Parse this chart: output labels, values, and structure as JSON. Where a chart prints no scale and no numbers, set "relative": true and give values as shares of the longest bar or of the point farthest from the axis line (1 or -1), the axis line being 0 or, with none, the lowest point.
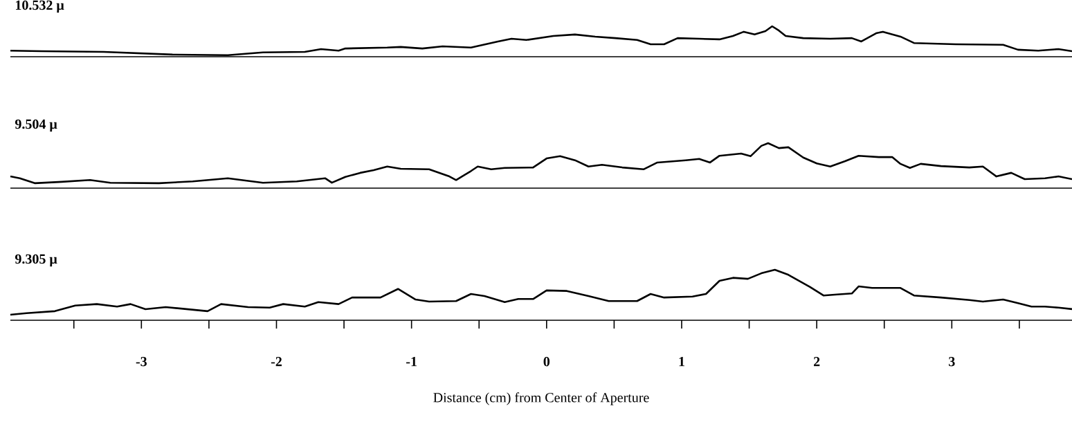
{
  "chart_data": [
    {
      "type": "line",
      "title": "10.532 μ",
      "relative": true,
      "color": "#000000",
      "xlim": [
        -3.97,
        3.89
      ],
      "tick_labels": false,
      "x": [
        -3.97,
        -3.74,
        -3.28,
        -2.77,
        -2.36,
        -2.1,
        -1.79,
        -1.67,
        -1.54,
        -1.49,
        -1.18,
        -1.08,
        -0.92,
        -0.77,
        -0.56,
        -0.36,
        -0.26,
        -0.15,
        0.05,
        0.21,
        0.36,
        0.51,
        0.67,
        0.77,
        0.87,
        0.97,
        1.13,
        1.28,
        1.38,
        1.46,
        1.54,
        1.62,
        1.67,
        1.72,
        1.77,
        1.9,
        2.1,
        2.26,
        2.33,
        2.44,
        2.49,
        2.62,
        2.72,
        3.03,
        3.38,
        3.49,
        3.64,
        3.79,
        3.89
      ],
      "values": [
        0.2,
        0.18,
        0.16,
        0.07,
        0.05,
        0.14,
        0.16,
        0.25,
        0.2,
        0.27,
        0.3,
        0.32,
        0.27,
        0.34,
        0.3,
        0.5,
        0.59,
        0.55,
        0.68,
        0.73,
        0.66,
        0.61,
        0.55,
        0.41,
        0.41,
        0.61,
        0.59,
        0.57,
        0.68,
        0.82,
        0.73,
        0.84,
        1,
        0.86,
        0.68,
        0.61,
        0.59,
        0.61,
        0.5,
        0.77,
        0.82,
        0.66,
        0.45,
        0.41,
        0.39,
        0.23,
        0.2,
        0.25,
        0.18
      ]
    },
    {
      "type": "line",
      "title": "9.504 μ",
      "relative": true,
      "color": "#000000",
      "xlim": [
        -3.97,
        3.89
      ],
      "tick_labels": false,
      "x": [
        -3.97,
        -3.9,
        -3.79,
        -3.59,
        -3.38,
        -3.23,
        -2.87,
        -2.62,
        -2.36,
        -2.1,
        -1.85,
        -1.64,
        -1.59,
        -1.49,
        -1.38,
        -1.28,
        -1.18,
        -1.08,
        -0.87,
        -0.72,
        -0.67,
        -0.56,
        -0.51,
        -0.41,
        -0.31,
        -0.1,
        0,
        0.1,
        0.21,
        0.31,
        0.41,
        0.56,
        0.72,
        0.82,
        1.03,
        1.13,
        1.21,
        1.28,
        1.44,
        1.51,
        1.59,
        1.64,
        1.72,
        1.79,
        1.9,
        2.0,
        2.1,
        2.21,
        2.31,
        2.46,
        2.56,
        2.62,
        2.69,
        2.77,
        2.92,
        3.13,
        3.23,
        3.33,
        3.44,
        3.54,
        3.69,
        3.79,
        3.89
      ],
      "values": [
        0.26,
        0.22,
        0.11,
        0.14,
        0.18,
        0.12,
        0.11,
        0.15,
        0.22,
        0.12,
        0.15,
        0.22,
        0.12,
        0.25,
        0.34,
        0.4,
        0.48,
        0.43,
        0.42,
        0.26,
        0.18,
        0.38,
        0.48,
        0.42,
        0.45,
        0.46,
        0.66,
        0.71,
        0.62,
        0.48,
        0.52,
        0.46,
        0.42,
        0.57,
        0.62,
        0.65,
        0.57,
        0.72,
        0.77,
        0.71,
        0.94,
        1,
        0.89,
        0.91,
        0.68,
        0.55,
        0.48,
        0.6,
        0.72,
        0.69,
        0.69,
        0.54,
        0.45,
        0.54,
        0.49,
        0.46,
        0.48,
        0.26,
        0.34,
        0.2,
        0.22,
        0.26,
        0.2
      ]
    },
    {
      "type": "line",
      "title": "9.305 μ",
      "relative": true,
      "color": "#000000",
      "xlim": [
        -3.97,
        3.89
      ],
      "xlabel": "Distance (cm) from Center of Aperture",
      "xticks": [
        {
          "value": -3.5,
          "label": null
        },
        -3,
        {
          "value": -2.5,
          "label": null
        },
        -2,
        {
          "value": -1.5,
          "label": null
        },
        -1,
        {
          "value": -0.5,
          "label": null
        },
        0,
        {
          "value": 0.5,
          "label": null
        },
        1,
        {
          "value": 1.5,
          "label": null
        },
        2,
        {
          "value": 2.5,
          "label": null
        },
        3,
        {
          "value": 3.5,
          "label": null
        }
      ],
      "x": [
        -3.97,
        -3.85,
        -3.64,
        -3.49,
        -3.33,
        -3.18,
        -3.08,
        -2.97,
        -2.82,
        -2.51,
        -2.41,
        -2.21,
        -2.05,
        -1.95,
        -1.79,
        -1.69,
        -1.54,
        -1.44,
        -1.23,
        -1.1,
        -0.97,
        -0.87,
        -0.67,
        -0.56,
        -0.46,
        -0.31,
        -0.21,
        -0.1,
        0,
        0.15,
        0.31,
        0.46,
        0.67,
        0.77,
        0.87,
        1.08,
        1.18,
        1.28,
        1.38,
        1.49,
        1.59,
        1.69,
        1.79,
        1.95,
        2.05,
        2.15,
        2.26,
        2.31,
        2.41,
        2.62,
        2.72,
        2.92,
        3.13,
        3.23,
        3.38,
        3.49,
        3.59,
        3.69,
        3.79,
        3.89
      ],
      "values": [
        0.11,
        0.14,
        0.18,
        0.29,
        0.32,
        0.27,
        0.32,
        0.22,
        0.26,
        0.18,
        0.32,
        0.26,
        0.25,
        0.32,
        0.27,
        0.36,
        0.32,
        0.45,
        0.45,
        0.62,
        0.41,
        0.37,
        0.38,
        0.52,
        0.48,
        0.36,
        0.42,
        0.42,
        0.59,
        0.58,
        0.48,
        0.38,
        0.38,
        0.52,
        0.45,
        0.47,
        0.52,
        0.78,
        0.84,
        0.82,
        0.93,
        1,
        0.9,
        0.66,
        0.49,
        0.51,
        0.53,
        0.67,
        0.64,
        0.64,
        0.49,
        0.45,
        0.4,
        0.37,
        0.41,
        0.34,
        0.27,
        0.27,
        0.25,
        0.22
      ]
    }
  ]
}
